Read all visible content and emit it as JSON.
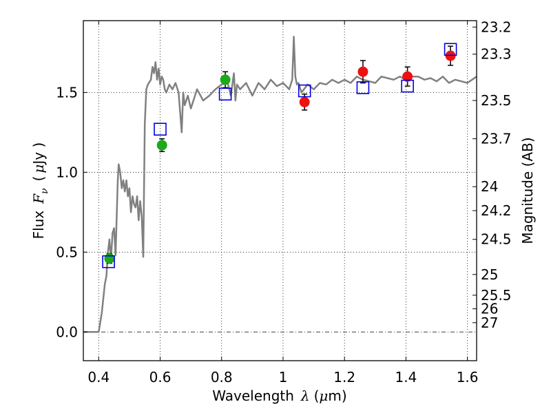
{
  "chart_data": {
    "type": "scatter",
    "xlabel": "Wavelength  λ (μm)",
    "ylabel": "Flux  F_ν  ( μJy )",
    "ylabel_parts": {
      "flux": "Flux",
      "f": "F",
      "nu": "ν",
      "unit_open": "(",
      "mu": "μ",
      "unit_rest": "Jy )"
    },
    "xlabel_parts": {
      "main": "Wavelength",
      "lambda": "λ",
      "unit_open": "(",
      "mu": "μ",
      "unit_rest": "m)"
    },
    "y2label": "Magnitude (AB)",
    "xlim": [
      0.35,
      1.63
    ],
    "ylim": [
      -0.18,
      1.95
    ],
    "xticks": [
      0.4,
      0.6,
      0.8,
      1.0,
      1.2,
      1.4,
      1.6
    ],
    "xtick_labels": [
      "0.4",
      "0.6",
      "0.8",
      "1",
      "1.2",
      "1.4",
      "1.6"
    ],
    "yticks": [
      0.0,
      0.5,
      1.0,
      1.5
    ],
    "ytick_labels": [
      "0.0",
      "0.5",
      "1.0",
      "1.5"
    ],
    "mag_ticks": [
      {
        "label": "23.2",
        "flux": 1.91
      },
      {
        "label": "23.3",
        "flux": 1.74
      },
      {
        "label": "23.5",
        "flux": 1.45
      },
      {
        "label": "23.7",
        "flux": 1.21
      },
      {
        "label": "24",
        "flux": 0.91
      },
      {
        "label": "24.2",
        "flux": 0.76
      },
      {
        "label": "24.5",
        "flux": 0.58
      },
      {
        "label": "25",
        "flux": 0.36
      },
      {
        "label": "25.5",
        "flux": 0.23
      },
      {
        "label": "26",
        "flux": 0.145
      },
      {
        "label": "27",
        "flux": 0.058
      }
    ],
    "grid": true,
    "zero_line": 0.0,
    "colors": {
      "sed": "#808080",
      "green": "#1aaa1a",
      "red": "#ee1111",
      "model": "#0000dd",
      "axes": "#000000"
    },
    "model_sed": {
      "name": "SED template",
      "x": [
        0.35,
        0.4,
        0.41,
        0.42,
        0.425,
        0.43,
        0.435,
        0.44,
        0.445,
        0.45,
        0.455,
        0.46,
        0.462,
        0.465,
        0.47,
        0.475,
        0.48,
        0.485,
        0.49,
        0.495,
        0.5,
        0.505,
        0.51,
        0.515,
        0.52,
        0.525,
        0.53,
        0.535,
        0.54,
        0.545,
        0.55,
        0.555,
        0.56,
        0.57,
        0.575,
        0.58,
        0.585,
        0.59,
        0.595,
        0.6,
        0.605,
        0.61,
        0.615,
        0.62,
        0.63,
        0.64,
        0.65,
        0.66,
        0.67,
        0.675,
        0.68,
        0.69,
        0.7,
        0.72,
        0.74,
        0.76,
        0.78,
        0.8,
        0.82,
        0.83,
        0.84,
        0.845,
        0.85,
        0.86,
        0.88,
        0.9,
        0.92,
        0.94,
        0.96,
        0.98,
        1.0,
        1.02,
        1.03,
        1.035,
        1.04,
        1.045,
        1.05,
        1.06,
        1.08,
        1.1,
        1.12,
        1.14,
        1.16,
        1.18,
        1.2,
        1.22,
        1.24,
        1.26,
        1.28,
        1.3,
        1.32,
        1.34,
        1.36,
        1.38,
        1.4,
        1.42,
        1.44,
        1.46,
        1.48,
        1.5,
        1.52,
        1.54,
        1.56,
        1.58,
        1.6,
        1.63
      ],
      "values": [
        0.0,
        0.0,
        0.12,
        0.3,
        0.35,
        0.5,
        0.58,
        0.45,
        0.62,
        0.65,
        0.48,
        0.82,
        0.95,
        1.05,
        1.0,
        0.9,
        0.95,
        0.88,
        0.95,
        0.85,
        0.9,
        0.75,
        0.85,
        0.8,
        0.78,
        0.85,
        0.7,
        0.82,
        0.72,
        0.47,
        1.3,
        1.52,
        1.55,
        1.58,
        1.66,
        1.62,
        1.69,
        1.58,
        1.65,
        1.55,
        1.6,
        1.58,
        1.52,
        1.5,
        1.55,
        1.52,
        1.56,
        1.5,
        1.25,
        1.5,
        1.42,
        1.48,
        1.4,
        1.52,
        1.45,
        1.48,
        1.52,
        1.55,
        1.56,
        1.48,
        1.62,
        1.45,
        1.55,
        1.52,
        1.56,
        1.48,
        1.56,
        1.52,
        1.58,
        1.54,
        1.56,
        1.52,
        1.58,
        1.85,
        1.6,
        1.55,
        1.56,
        1.5,
        1.55,
        1.52,
        1.56,
        1.55,
        1.58,
        1.56,
        1.58,
        1.56,
        1.6,
        1.58,
        1.57,
        1.56,
        1.6,
        1.59,
        1.58,
        1.6,
        1.58,
        1.6,
        1.6,
        1.58,
        1.59,
        1.57,
        1.6,
        1.56,
        1.58,
        1.57,
        1.56,
        1.6
      ]
    },
    "series": [
      {
        "name": "green observed",
        "marker": "circle",
        "color": "#1aaa1a",
        "x": [
          0.435,
          0.606,
          0.812
        ],
        "y": [
          0.46,
          1.17,
          1.58
        ],
        "yerr": [
          0.03,
          0.04,
          0.05
        ]
      },
      {
        "name": "red observed",
        "marker": "circle",
        "color": "#ee1111",
        "x": [
          1.07,
          1.26,
          1.405,
          1.545
        ],
        "y": [
          1.44,
          1.63,
          1.6,
          1.73
        ],
        "yerr": [
          0.05,
          0.07,
          0.06,
          0.06
        ]
      },
      {
        "name": "model photometry",
        "marker": "open-square",
        "color": "#0000dd",
        "x": [
          0.432,
          0.6,
          0.812,
          1.07,
          1.26,
          1.405,
          1.545
        ],
        "y": [
          0.44,
          1.27,
          1.49,
          1.51,
          1.53,
          1.54,
          1.77
        ]
      }
    ]
  }
}
